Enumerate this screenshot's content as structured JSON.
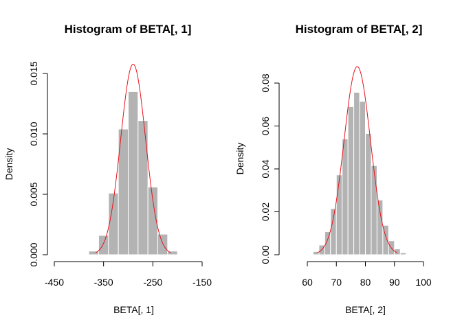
{
  "chart_data": [
    {
      "type": "bar",
      "title": "Histogram of BETA[, 1]",
      "xlabel": "BETA[, 1]",
      "ylabel": "Density",
      "xlim": [
        -450,
        -150
      ],
      "ylim": [
        0,
        0.015
      ],
      "xticks": [
        "-450",
        "-350",
        "-250",
        "-150"
      ],
      "yticks": [
        "0.000",
        "0.005",
        "0.010",
        "0.015"
      ],
      "bins": [
        {
          "from": -400,
          "to": -380,
          "value": 2e-05
        },
        {
          "from": -380,
          "to": -360,
          "value": 0.0003
        },
        {
          "from": -360,
          "to": -340,
          "value": 0.0016
        },
        {
          "from": -340,
          "to": -320,
          "value": 0.0051
        },
        {
          "from": -320,
          "to": -300,
          "value": 0.0104
        },
        {
          "from": -300,
          "to": -280,
          "value": 0.0135
        },
        {
          "from": -280,
          "to": -260,
          "value": 0.0111
        },
        {
          "from": -260,
          "to": -240,
          "value": 0.0056
        },
        {
          "from": -240,
          "to": -220,
          "value": 0.0017
        },
        {
          "from": -220,
          "to": -200,
          "value": 0.0003
        }
      ],
      "curve": {
        "type": "normal-density",
        "mean": -290,
        "sd": 25.3,
        "color": "#e8101a"
      },
      "bar_color": "#b3b3b3"
    },
    {
      "type": "bar",
      "title": "Histogram of BETA[, 2]",
      "xlabel": "BETA[, 2]",
      "ylabel": "Density",
      "xlim": [
        60,
        100
      ],
      "ylim": [
        0,
        0.08
      ],
      "xticks": [
        "60",
        "70",
        "80",
        "90",
        "100"
      ],
      "yticks": [
        "0.00",
        "0.02",
        "0.04",
        "0.06",
        "0.08"
      ],
      "bins": [
        {
          "from": 62,
          "to": 64,
          "value": 0.0015
        },
        {
          "from": 64,
          "to": 66,
          "value": 0.0045
        },
        {
          "from": 66,
          "to": 68,
          "value": 0.0107
        },
        {
          "from": 68,
          "to": 70,
          "value": 0.0215
        },
        {
          "from": 70,
          "to": 72,
          "value": 0.0372
        },
        {
          "from": 72,
          "to": 74,
          "value": 0.054
        },
        {
          "from": 74,
          "to": 76,
          "value": 0.069
        },
        {
          "from": 76,
          "to": 78,
          "value": 0.0757
        },
        {
          "from": 78,
          "to": 80,
          "value": 0.0715
        },
        {
          "from": 80,
          "to": 82,
          "value": 0.0565
        },
        {
          "from": 82,
          "to": 84,
          "value": 0.0415
        },
        {
          "from": 84,
          "to": 86,
          "value": 0.0255
        },
        {
          "from": 86,
          "to": 88,
          "value": 0.0137
        },
        {
          "from": 88,
          "to": 90,
          "value": 0.0065
        },
        {
          "from": 90,
          "to": 92,
          "value": 0.0027
        },
        {
          "from": 92,
          "to": 94,
          "value": 0.0009
        },
        {
          "from": 94,
          "to": 96,
          "value": 0.0003
        }
      ],
      "curve": {
        "type": "normal-density",
        "mean": 77.2,
        "sd": 4.55,
        "color": "#e8101a"
      },
      "bar_color": "#b3b3b3"
    }
  ]
}
